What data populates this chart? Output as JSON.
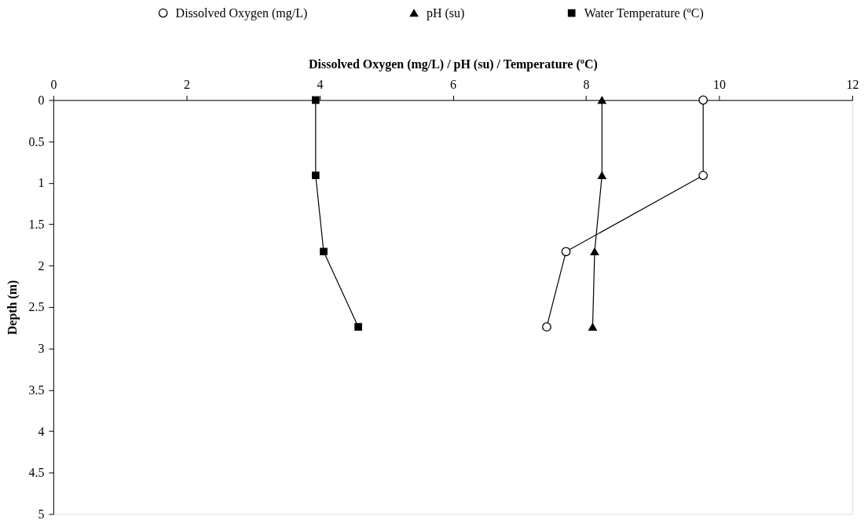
{
  "chart_data": {
    "type": "line",
    "xlabel": "Dissolved Oxygen (mg/L) / pH (su) / Temperature (ºC)",
    "ylabel": "Depth (m)",
    "xlim": [
      0,
      12
    ],
    "xticks": [
      0,
      2,
      4,
      6,
      8,
      10,
      12
    ],
    "ylim": [
      5,
      0
    ],
    "yticks": [
      0,
      0.5,
      1,
      1.5,
      2,
      2.5,
      3,
      3.5,
      4,
      4.5,
      5
    ],
    "grid": false,
    "legend": "top",
    "line_style": "solid",
    "series": [
      {
        "name": "Dissolved Oxygen (mg/L)",
        "color": "#000000",
        "marker": "circle",
        "x": [
          9.76,
          9.76,
          7.7,
          7.41
        ],
        "values": [
          0,
          0.91,
          1.83,
          2.74
        ]
      },
      {
        "name": "pH (su)",
        "color": "#000000",
        "marker": "triangle",
        "x": [
          8.24,
          8.24,
          8.13,
          8.1
        ],
        "values": [
          0,
          0.91,
          1.83,
          2.74
        ]
      },
      {
        "name": "Water Temperature (ºC)",
        "color": "#000000",
        "marker": "square",
        "x": [
          3.94,
          3.94,
          4.06,
          4.58
        ],
        "values": [
          0,
          0.91,
          1.83,
          2.74
        ]
      }
    ]
  }
}
